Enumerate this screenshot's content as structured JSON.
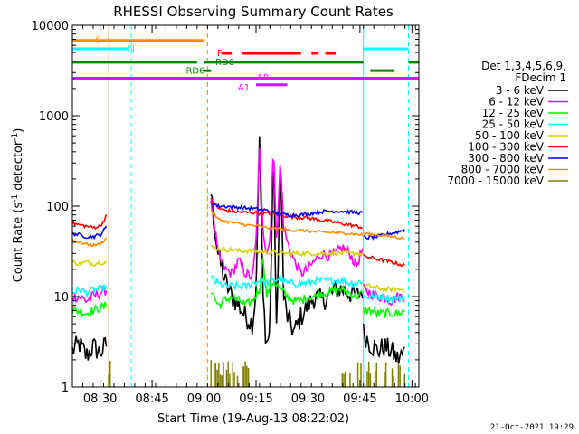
{
  "chart_data": {
    "type": "line",
    "title": "RHESSI Observing Summary Count Rates",
    "xlabel": "Start Time (19-Aug-13 08:22:02)",
    "ylabel": "Count Rate (s-1 detector-1)",
    "ylabel_parts": {
      "base": "Count Rate (s",
      "sup1": "-1",
      "mid": " detector",
      "sup2": "-1",
      "end": ")"
    },
    "date_stamp": "21-Oct-2021 19:29",
    "xlim": [
      0,
      100
    ],
    "ylim": [
      1,
      10000
    ],
    "y_scale": "log",
    "x_ticks": [
      {
        "label": "08:30",
        "t": 8
      },
      {
        "label": "08:45",
        "t": 23
      },
      {
        "label": "09:00",
        "t": 38
      },
      {
        "label": "09:15",
        "t": 53
      },
      {
        "label": "09:30",
        "t": 68
      },
      {
        "label": "09:45",
        "t": 83
      },
      {
        "label": "10:00",
        "t": 98
      }
    ],
    "y_ticks": [
      {
        "label": "1",
        "v": 1
      },
      {
        "label": "10",
        "v": 10
      },
      {
        "label": "100",
        "v": 100
      },
      {
        "label": "1000",
        "v": 1000
      },
      {
        "label": "10000",
        "v": 10000
      }
    ],
    "legend": {
      "header1": "Det 1,3,4,5,6,9,",
      "header2": "FDecim 1",
      "entries": [
        {
          "label": "3 - 6 keV",
          "color": "#000000"
        },
        {
          "label": "6 - 12 keV",
          "color": "#ff00ff"
        },
        {
          "label": "12 - 25 keV",
          "color": "#00ff00"
        },
        {
          "label": "25 - 50 keV",
          "color": "#00ffff"
        },
        {
          "label": "50 - 100 keV",
          "color": "#d4d400"
        },
        {
          "label": "100 - 300 keV",
          "color": "#ff0000"
        },
        {
          "label": "300 - 800 keV",
          "color": "#0000ff"
        },
        {
          "label": "800 - 7000 keV",
          "color": "#ff8c00"
        },
        {
          "label": "7000 - 15000 keV",
          "color": "#808000"
        }
      ]
    },
    "flag_bars": [
      {
        "label": "S",
        "color": "#ff8c00",
        "label_at": 7.5,
        "label_v": 7000,
        "segments": [
          [
            0,
            38
          ]
        ],
        "v": 6800,
        "width": 3
      },
      {
        "label": "N",
        "color": "#00ffff",
        "label_at": 17,
        "label_v": 5600,
        "segments": [
          [
            0,
            16
          ],
          [
            84,
            97
          ]
        ],
        "v": 5500,
        "width": 3
      },
      {
        "label": "F",
        "color": "#ff0000",
        "label_at": 42.5,
        "label_v": 5000,
        "segments": [
          [
            43,
            46
          ],
          [
            49,
            66
          ],
          [
            69,
            71
          ],
          [
            73,
            76
          ]
        ],
        "v": 4900,
        "width": 3
      },
      {
        "label": "RD0",
        "color": "#008800",
        "label_at": 44,
        "label_v": 4000,
        "segments": [
          [
            0,
            36
          ],
          [
            38,
            84
          ],
          [
            97,
            100
          ]
        ],
        "v": 3900,
        "width": 3
      },
      {
        "label": "RD6",
        "color": "#008800",
        "label_at": 35.5,
        "label_v": 3200,
        "segments": [
          [
            38,
            40
          ],
          [
            86,
            93
          ]
        ],
        "v": 3150,
        "width": 3
      },
      {
        "label": "A0",
        "color": "#ff00ff",
        "label_at": 55,
        "label_v": 2700,
        "segments": [
          [
            0,
            100
          ]
        ],
        "v": 2600,
        "width": 3
      },
      {
        "label": "A1",
        "color": "#ff00ff",
        "label_at": 49.5,
        "label_v": 2100,
        "segments": [
          [
            53,
            62
          ]
        ],
        "v": 2200,
        "width": 3
      }
    ],
    "vlines": [
      {
        "t": 10.5,
        "color": "#ff8c00",
        "style": "solid"
      },
      {
        "t": 17,
        "color": "#00ffff",
        "style": "dashed"
      },
      {
        "t": 39,
        "color": "#ff8c00",
        "style": "dashed"
      },
      {
        "t": 84,
        "color": "#00ffff",
        "style": "solid"
      },
      {
        "t": 97,
        "color": "#00ffff",
        "style": "dashed"
      }
    ],
    "series": [
      {
        "name": "3 - 6 keV",
        "color": "#000000",
        "noise": 0.25,
        "segments": [
          {
            "x": [
              0,
              2,
              4,
              6,
              8,
              10
            ],
            "y": [
              2.5,
              3,
              2.2,
              2.8,
              2.4,
              3
            ]
          },
          {
            "x": [
              40,
              41,
              42,
              44,
              46,
              48,
              50,
              52,
              53,
              54,
              55,
              56,
              57,
              58,
              59,
              60,
              61,
              62,
              64,
              66,
              68,
              70,
              72,
              74,
              76,
              78,
              80,
              82,
              84
            ],
            "y": [
              140,
              60,
              30,
              15,
              10,
              8,
              6,
              5,
              12,
              600,
              10,
              3,
              4,
              500,
              3,
              350,
              10,
              6,
              4,
              6,
              8,
              10,
              9,
              10,
              12,
              12,
              11,
              10,
              12
            ]
          },
          {
            "x": [
              84,
              86,
              88,
              90,
              92,
              94,
              96
            ],
            "y": [
              4,
              3,
              2.5,
              2.8,
              2.5,
              2,
              2.5
            ]
          }
        ]
      },
      {
        "name": "6 - 12 keV",
        "color": "#ff00ff",
        "noise": 0.12,
        "segments": [
          {
            "x": [
              0,
              2,
              4,
              6,
              8,
              10
            ],
            "y": [
              10,
              10,
              9,
              10,
              11,
              12
            ]
          },
          {
            "x": [
              40,
              42,
              44,
              46,
              48,
              50,
              52,
              53,
              54,
              55,
              56,
              57,
              58,
              59,
              60,
              61,
              62,
              64,
              66,
              68,
              70,
              72,
              74,
              76,
              78,
              80,
              82,
              84
            ],
            "y": [
              120,
              30,
              20,
              18,
              25,
              18,
              16,
              40,
              400,
              60,
              30,
              40,
              450,
              40,
              320,
              60,
              40,
              25,
              18,
              20,
              25,
              30,
              28,
              30,
              35,
              30,
              22,
              35
            ]
          },
          {
            "x": [
              84,
              86,
              88,
              90,
              92,
              94,
              96
            ],
            "y": [
              12,
              11,
              10,
              10,
              9,
              10,
              10
            ]
          }
        ]
      },
      {
        "name": "12 - 25 keV",
        "color": "#00ff00",
        "noise": 0.1,
        "segments": [
          {
            "x": [
              0,
              2,
              4,
              6,
              8,
              10
            ],
            "y": [
              7,
              7,
              6.5,
              7,
              7.5,
              8
            ]
          },
          {
            "x": [
              40,
              42,
              44,
              46,
              48,
              50,
              52,
              54,
              55,
              56,
              58,
              60,
              62,
              64,
              66,
              68,
              70,
              72,
              74,
              76,
              78,
              80,
              82,
              84
            ],
            "y": [
              12,
              8,
              9,
              10,
              9,
              8,
              9,
              12,
              30,
              10,
              15,
              12,
              10,
              9,
              9,
              10,
              10,
              11,
              11,
              12,
              12,
              11,
              10,
              11
            ]
          },
          {
            "x": [
              84,
              86,
              88,
              90,
              92,
              94,
              96
            ],
            "y": [
              7,
              7,
              6.5,
              6.5,
              6.5,
              6.5,
              7
            ]
          }
        ]
      },
      {
        "name": "25 - 50 keV",
        "color": "#00ffff",
        "noise": 0.08,
        "segments": [
          {
            "x": [
              0,
              2,
              4,
              6,
              8,
              10
            ],
            "y": [
              11,
              12,
              11,
              12,
              12,
              13
            ]
          },
          {
            "x": [
              40,
              42,
              44,
              46,
              48,
              50,
              52,
              54,
              56,
              58,
              60,
              62,
              64,
              66,
              68,
              70,
              72,
              74,
              76,
              78,
              80,
              82,
              84
            ],
            "y": [
              16,
              14,
              13,
              13,
              13,
              13,
              14,
              15,
              14,
              15,
              16,
              14,
              14,
              14,
              14,
              15,
              15,
              15,
              15,
              15,
              14,
              14,
              15
            ]
          },
          {
            "x": [
              84,
              86,
              88,
              90,
              92,
              94,
              96
            ],
            "y": [
              10,
              10,
              10,
              10,
              9.5,
              9.5,
              10
            ]
          }
        ]
      },
      {
        "name": "50 - 100 keV",
        "color": "#d4d400",
        "noise": 0.05,
        "segments": [
          {
            "x": [
              0,
              2,
              4,
              6,
              8,
              10
            ],
            "y": [
              24,
              23,
              24,
              23,
              24,
              24
            ]
          },
          {
            "x": [
              40,
              42,
              44,
              46,
              48,
              50,
              52,
              54,
              56,
              58,
              60,
              62,
              64,
              66,
              68,
              70,
              72,
              74,
              76,
              78,
              80,
              82,
              84
            ],
            "y": [
              35,
              34,
              33,
              33,
              32,
              32,
              32,
              31,
              31,
              31,
              30,
              30,
              30,
              30,
              30,
              30,
              30,
              30,
              30,
              30,
              30,
              30,
              29
            ]
          },
          {
            "x": [
              84,
              86,
              88,
              90,
              92,
              94,
              96
            ],
            "y": [
              13,
              13,
              12.5,
              12,
              12,
              12,
              12
            ]
          }
        ]
      },
      {
        "name": "100 - 300 keV",
        "color": "#ff0000",
        "noise": 0.04,
        "segments": [
          {
            "x": [
              0,
              2,
              4,
              6,
              8,
              10
            ],
            "y": [
              65,
              62,
              60,
              58,
              60,
              80
            ]
          },
          {
            "x": [
              40,
              42,
              44,
              46,
              48,
              50,
              52,
              54,
              56,
              58,
              60,
              62,
              64,
              66,
              68,
              70,
              72,
              74,
              76,
              78,
              80,
              82,
              84
            ],
            "y": [
              120,
              95,
              90,
              88,
              86,
              85,
              85,
              84,
              83,
              82,
              80,
              78,
              76,
              75,
              74,
              72,
              70,
              68,
              66,
              64,
              62,
              60,
              58
            ]
          },
          {
            "x": [
              84,
              86,
              88,
              90,
              92,
              94,
              96
            ],
            "y": [
              28,
              27,
              26,
              25,
              24,
              23,
              22
            ]
          }
        ]
      },
      {
        "name": "300 - 800 keV",
        "color": "#0000ff",
        "noise": 0.04,
        "segments": [
          {
            "x": [
              0,
              2,
              4,
              6,
              8,
              10
            ],
            "y": [
              50,
              48,
              46,
              46,
              48,
              60
            ]
          },
          {
            "x": [
              40,
              42,
              44,
              46,
              48,
              50,
              52,
              54,
              56,
              58,
              60,
              62,
              64,
              66,
              68,
              70,
              72,
              74,
              76,
              78,
              80,
              82,
              84
            ],
            "y": [
              110,
              100,
              100,
              98,
              97,
              95,
              94,
              92,
              90,
              85,
              82,
              80,
              80,
              80,
              82,
              85,
              87,
              88,
              88,
              88,
              86,
              85,
              84
            ]
          },
          {
            "x": [
              84,
              86,
              88,
              90,
              92,
              94,
              96
            ],
            "y": [
              45,
              45,
              46,
              48,
              50,
              52,
              55
            ]
          }
        ]
      },
      {
        "name": "800 - 7000 keV",
        "color": "#ff8c00",
        "noise": 0.03,
        "segments": [
          {
            "x": [
              0,
              2,
              4,
              6,
              8,
              10
            ],
            "y": [
              42,
              40,
              38,
              37,
              38,
              45
            ]
          },
          {
            "x": [
              40,
              42,
              44,
              46,
              48,
              50,
              52,
              54,
              56,
              58,
              60,
              62,
              64,
              66,
              68,
              70,
              72,
              74,
              76,
              78,
              80,
              82,
              84
            ],
            "y": [
              90,
              72,
              68,
              66,
              64,
              62,
              61,
              60,
              58,
              57,
              56,
              55,
              54,
              54,
              53,
              52,
              52,
              51,
              51,
              50,
              50,
              49,
              48
            ]
          },
          {
            "x": [
              84,
              86,
              88,
              90,
              92,
              94,
              96
            ],
            "y": [
              50,
              49,
              48,
              47,
              46,
              45,
              44
            ]
          }
        ]
      }
    ],
    "brown_spikes": {
      "color": "#808000",
      "ranges": [
        [
          10,
          11
        ],
        [
          40,
          51
        ],
        [
          77,
          96
        ]
      ],
      "top": 2.0
    }
  }
}
